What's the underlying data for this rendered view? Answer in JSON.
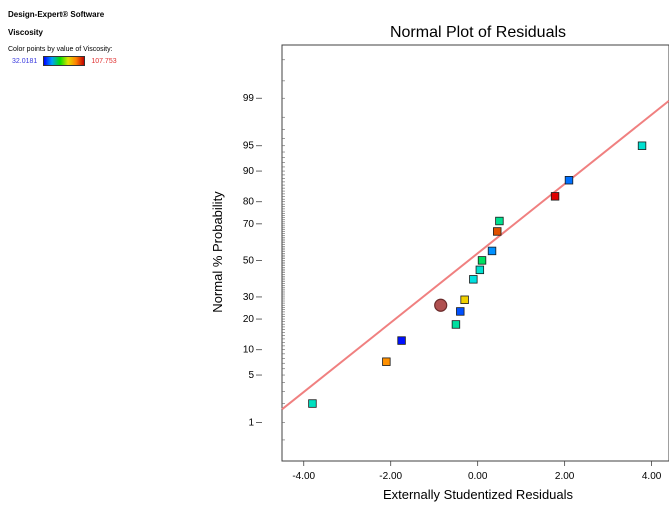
{
  "sidebar": {
    "app_title": "Design-Expert® Software",
    "response": "Viscosity",
    "color_desc": "Color points by value of Viscosity:",
    "color_min": "32.0181",
    "color_max": "107.753"
  },
  "chart_data": {
    "type": "scatter",
    "title": "Normal Plot of Residuals",
    "xlabel": "Externally Studentized Residuals",
    "ylabel": "Normal % Probability",
    "xlim": [
      -4.5,
      4.4
    ],
    "x_ticks": [
      {
        "value": -4,
        "label": "-4.00"
      },
      {
        "value": -2,
        "label": "-2.00"
      },
      {
        "value": 0,
        "label": "0.00"
      },
      {
        "value": 2,
        "label": "2.00"
      },
      {
        "value": 4,
        "label": "4.00"
      }
    ],
    "y_scale": "normal-probability",
    "ylim": [
      0.2,
      99.9
    ],
    "y_ticks": [
      1,
      5,
      10,
      20,
      30,
      50,
      70,
      80,
      90,
      95,
      99
    ],
    "reference_line": {
      "color": "#f08080",
      "points": [
        [
          -4.5,
          1.63
        ],
        [
          4.4,
          98.9
        ]
      ]
    },
    "points": [
      {
        "x": -3.8,
        "y": 2.0,
        "color": "#00e0c0"
      },
      {
        "x": -2.1,
        "y": 7.3,
        "color": "#ff9000"
      },
      {
        "x": -1.75,
        "y": 12.5,
        "color": "#0010ff"
      },
      {
        "x": -0.5,
        "y": 17.9,
        "color": "#00e0a0"
      },
      {
        "x": -0.4,
        "y": 23.2,
        "color": "#0050ff"
      },
      {
        "x": -0.3,
        "y": 28.6,
        "color": "#f0d000",
        "highlight": false
      },
      {
        "x": -0.85,
        "y": 26.0,
        "color": "#b05050",
        "highlight": true
      },
      {
        "x": -0.1,
        "y": 39.3,
        "color": "#00e0e0"
      },
      {
        "x": 0.05,
        "y": 44.6,
        "color": "#00e0d0"
      },
      {
        "x": 0.1,
        "y": 50.0,
        "color": "#00e060"
      },
      {
        "x": 0.33,
        "y": 55.4,
        "color": "#0090ff"
      },
      {
        "x": 0.45,
        "y": 66.1,
        "color": "#e05000"
      },
      {
        "x": 0.5,
        "y": 71.4,
        "color": "#00e090"
      },
      {
        "x": 1.78,
        "y": 82.1,
        "color": "#e00000"
      },
      {
        "x": 2.1,
        "y": 87.5,
        "color": "#0070ff"
      },
      {
        "x": 3.78,
        "y": 95.0,
        "color": "#00e0d0"
      }
    ]
  }
}
